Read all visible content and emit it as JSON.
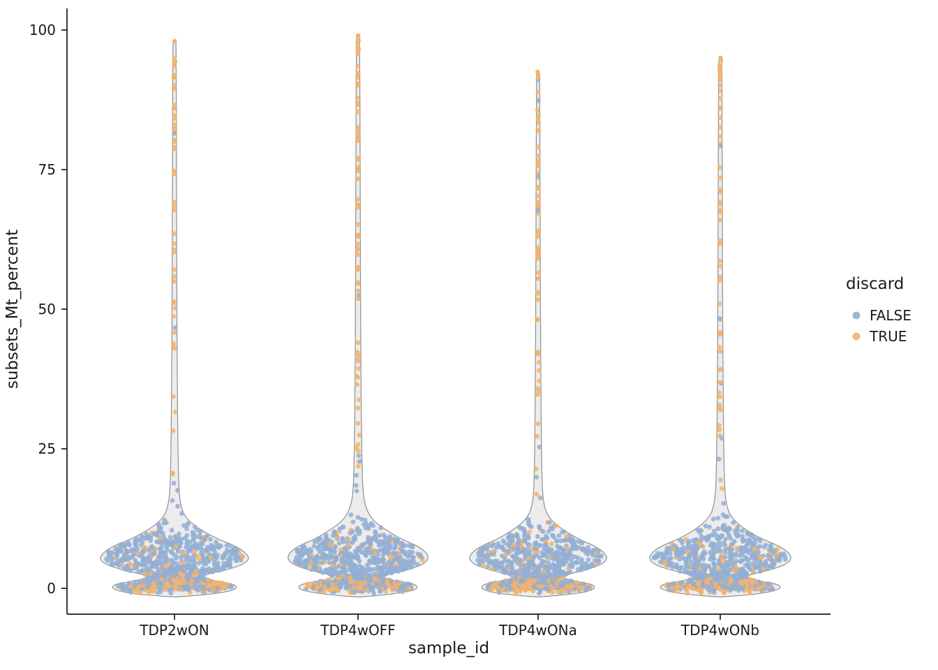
{
  "page": {
    "background": "#FFFFFF"
  },
  "chart_data": {
    "type": "violin",
    "title": "",
    "xlabel": "sample_id",
    "ylabel": "subsets_Mt_percent",
    "yticks": [
      0,
      25,
      50,
      75,
      100
    ],
    "ylim": [
      -5,
      104
    ],
    "grid": false,
    "categories": [
      "TDP2wON",
      "TDP4wOFF",
      "TDP4wONa",
      "TDP4wONb"
    ],
    "legend": {
      "title": "discard",
      "position": "right",
      "entries": [
        {
          "label": "FALSE",
          "color": "#93AFD3"
        },
        {
          "label": "TRUE",
          "color": "#F3B36B"
        }
      ]
    },
    "style": {
      "false_color": "#93AFD3",
      "true_color": "#F3B36B",
      "violin_fill": "#ECECEC",
      "violin_stroke": "#8F8F8F",
      "axis_color": "#1A1A1A",
      "point_radius": 3.4,
      "point_opacity": 0.85
    },
    "point_model": {
      "low_lobe": {
        "mean": 0.55,
        "sd": 0.65,
        "lo": -0.9,
        "hi": 1.8,
        "weight": 0.36
      },
      "waist": {
        "mean": 2.2,
        "sd": 1.0,
        "lo": 1.0,
        "hi": 4.0,
        "weight": 0.1
      },
      "body": {
        "mean": 5.4,
        "sd": 2.7,
        "lo": 1.8,
        "hi": 15.0,
        "weight": 0.54
      },
      "true_fraction_low": 0.5,
      "true_fraction_body": 0.1,
      "true_fraction_tail_low": 0.65,
      "true_fraction_tail_high": 0.96
    },
    "violins": [
      {
        "category": "TDP2wON",
        "max_value": 98,
        "profile": [
          [
            -1.5,
            6
          ],
          [
            -1.1,
            46
          ],
          [
            -0.6,
            74
          ],
          [
            0,
            88
          ],
          [
            0.7,
            84
          ],
          [
            1.3,
            60
          ],
          [
            1.9,
            41
          ],
          [
            2.5,
            47
          ],
          [
            3.3,
            74
          ],
          [
            4.3,
            97
          ],
          [
            5.3,
            106
          ],
          [
            6.4,
            101
          ],
          [
            7.6,
            86
          ],
          [
            9,
            60
          ],
          [
            10.5,
            38
          ],
          [
            12,
            22
          ],
          [
            13.5,
            13
          ],
          [
            15.5,
            8.5
          ],
          [
            18,
            6.5
          ],
          [
            24,
            5.2
          ],
          [
            32,
            4.4
          ],
          [
            45,
            3.7
          ],
          [
            60,
            3.2
          ],
          [
            78,
            2.8
          ],
          [
            96,
            2.3
          ],
          [
            98,
            0.7
          ]
        ],
        "n_body_points": 980,
        "n_tail_points": 52,
        "seed": 11
      },
      {
        "category": "TDP4wOFF",
        "max_value": 99,
        "profile": [
          [
            -1.5,
            6
          ],
          [
            -1.1,
            42
          ],
          [
            -0.6,
            70
          ],
          [
            0,
            84
          ],
          [
            0.7,
            80
          ],
          [
            1.3,
            56
          ],
          [
            1.9,
            38
          ],
          [
            2.5,
            44
          ],
          [
            3.3,
            70
          ],
          [
            4.3,
            92
          ],
          [
            5.3,
            100
          ],
          [
            6.4,
            97
          ],
          [
            7.6,
            84
          ],
          [
            9,
            60
          ],
          [
            10.5,
            40
          ],
          [
            12,
            24
          ],
          [
            13.5,
            15
          ],
          [
            15.5,
            9.5
          ],
          [
            18,
            7
          ],
          [
            24,
            5.5
          ],
          [
            32,
            4.6
          ],
          [
            45,
            3.9
          ],
          [
            60,
            3.4
          ],
          [
            78,
            3
          ],
          [
            97,
            2.3
          ],
          [
            99,
            0.7
          ]
        ],
        "n_body_points": 1020,
        "n_tail_points": 72,
        "seed": 22
      },
      {
        "category": "TDP4wONa",
        "max_value": 92.5,
        "profile": [
          [
            -1.5,
            6
          ],
          [
            -1.1,
            42
          ],
          [
            -0.6,
            68
          ],
          [
            0,
            80
          ],
          [
            0.7,
            76
          ],
          [
            1.3,
            54
          ],
          [
            1.9,
            37
          ],
          [
            2.5,
            43
          ],
          [
            3.3,
            68
          ],
          [
            4.3,
            90
          ],
          [
            5.3,
            98
          ],
          [
            6.4,
            94
          ],
          [
            7.6,
            80
          ],
          [
            9,
            56
          ],
          [
            10.5,
            36
          ],
          [
            12,
            21
          ],
          [
            13.5,
            12.5
          ],
          [
            15.5,
            8
          ],
          [
            18,
            6.2
          ],
          [
            24,
            5
          ],
          [
            32,
            4.3
          ],
          [
            45,
            3.6
          ],
          [
            60,
            3.1
          ],
          [
            78,
            2.7
          ],
          [
            90.5,
            2.2
          ],
          [
            92.5,
            0.7
          ]
        ],
        "n_body_points": 900,
        "n_tail_points": 62,
        "seed": 33
      },
      {
        "category": "TDP4wONb",
        "max_value": 95,
        "profile": [
          [
            -1.5,
            6
          ],
          [
            -1.1,
            44
          ],
          [
            -0.6,
            71
          ],
          [
            0,
            85
          ],
          [
            0.7,
            81
          ],
          [
            1.3,
            57
          ],
          [
            1.9,
            39
          ],
          [
            2.5,
            45
          ],
          [
            3.3,
            71
          ],
          [
            4.3,
            93
          ],
          [
            5.3,
            101
          ],
          [
            6.4,
            97
          ],
          [
            7.6,
            83
          ],
          [
            9,
            58
          ],
          [
            10.5,
            37
          ],
          [
            12,
            22
          ],
          [
            13.5,
            13
          ],
          [
            15.5,
            8.5
          ],
          [
            18,
            6.5
          ],
          [
            24,
            5.2
          ],
          [
            32,
            4.4
          ],
          [
            45,
            3.7
          ],
          [
            60,
            3.2
          ],
          [
            78,
            2.8
          ],
          [
            93,
            2.3
          ],
          [
            95,
            0.7
          ]
        ],
        "n_body_points": 940,
        "n_tail_points": 58,
        "seed": 44
      }
    ]
  }
}
